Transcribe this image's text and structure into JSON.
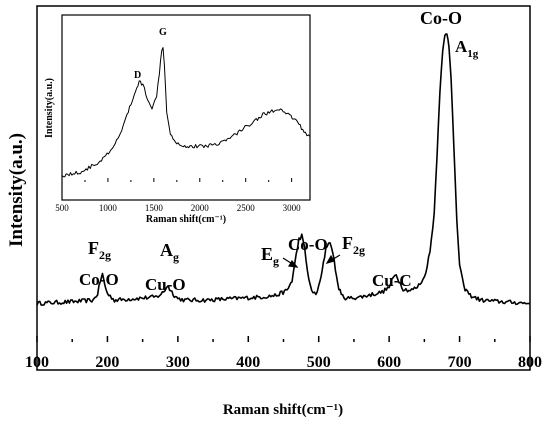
{
  "chart_data": [
    {
      "type": "line",
      "title": "",
      "xlabel": "Raman shift(cm⁻¹)",
      "ylabel": "Intensity(a.u.)",
      "xlim": [
        100,
        800
      ],
      "ylim": [
        0,
        100
      ],
      "xticks": [
        "100",
        "200",
        "300",
        "400",
        "500",
        "600",
        "700",
        "800"
      ],
      "grid": false,
      "series": [
        {
          "x": [
            100,
            150,
            180,
            186,
            190,
            193,
            196,
            200,
            210,
            240,
            270,
            280,
            285,
            290,
            295,
            300,
            310,
            340,
            380,
            420,
            440,
            455,
            462,
            468,
            472,
            476,
            480,
            484,
            490,
            496,
            500,
            505,
            510,
            514,
            518,
            522,
            527,
            532,
            540,
            560,
            590,
            600,
            606,
            610,
            614,
            620,
            630,
            640,
            650,
            658,
            664,
            668,
            672,
            676,
            679,
            682,
            685,
            688,
            692,
            696,
            700,
            706,
            715,
            730,
            760,
            800
          ],
          "y": [
            12,
            12.5,
            13,
            15,
            19,
            21,
            18,
            15,
            13,
            13.5,
            14,
            15.5,
            17.5,
            16,
            14.5,
            13.5,
            13,
            13,
            13.5,
            14,
            14.5,
            16,
            19,
            27,
            32,
            33,
            29,
            22,
            15.5,
            15,
            17,
            22,
            29,
            31,
            30,
            25,
            18,
            14.5,
            13.5,
            14,
            15.5,
            17,
            20,
            21,
            19,
            16.5,
            16,
            17,
            20,
            28,
            40,
            58,
            78,
            90,
            95,
            96,
            92,
            82,
            60,
            38,
            24,
            17,
            14.5,
            13,
            12.5,
            12
          ]
        }
      ],
      "annotations": [
        {
          "label": "F",
          "sub": "2g",
          "mode": "Co-O",
          "x": 190
        },
        {
          "label": "A",
          "sub": "g",
          "mode": "Cu-O",
          "x": 285
        },
        {
          "label": "E",
          "sub": "g",
          "x": 472
        },
        {
          "label": "Co-O",
          "x": 490
        },
        {
          "label": "F",
          "sub": "2g",
          "x": 514
        },
        {
          "label": "Cu-C",
          "x": 612
        },
        {
          "label": "Co-O",
          "x": 681
        },
        {
          "label": "A",
          "sub": "1g",
          "x": 690
        }
      ]
    },
    {
      "type": "line",
      "title": "",
      "xlabel": "Raman shift(cm⁻¹)",
      "ylabel": "Intensity(a.u.)",
      "xlim": [
        500,
        3200
      ],
      "ylim": [
        0,
        100
      ],
      "xticks": [
        "500",
        "1000",
        "1500",
        "2000",
        "2500",
        "3000"
      ],
      "grid": false,
      "series": [
        {
          "x": [
            500,
            700,
            900,
            1050,
            1150,
            1250,
            1300,
            1340,
            1380,
            1430,
            1480,
            1530,
            1560,
            1585,
            1600,
            1615,
            1640,
            1680,
            1750,
            1850,
            2000,
            2150,
            2300,
            2450,
            2600,
            2700,
            2800,
            2880,
            2950,
            3050,
            3150,
            3200
          ],
          "y": [
            4,
            6,
            12,
            20,
            32,
            48,
            56,
            62,
            60,
            52,
            46,
            52,
            68,
            82,
            84,
            72,
            44,
            30,
            24,
            22,
            22,
            23,
            26,
            32,
            38,
            42,
            44,
            44,
            42,
            38,
            30,
            28
          ]
        }
      ],
      "annotations": [
        {
          "label": "D",
          "x": 1340
        },
        {
          "label": "G",
          "x": 1600
        }
      ]
    }
  ]
}
